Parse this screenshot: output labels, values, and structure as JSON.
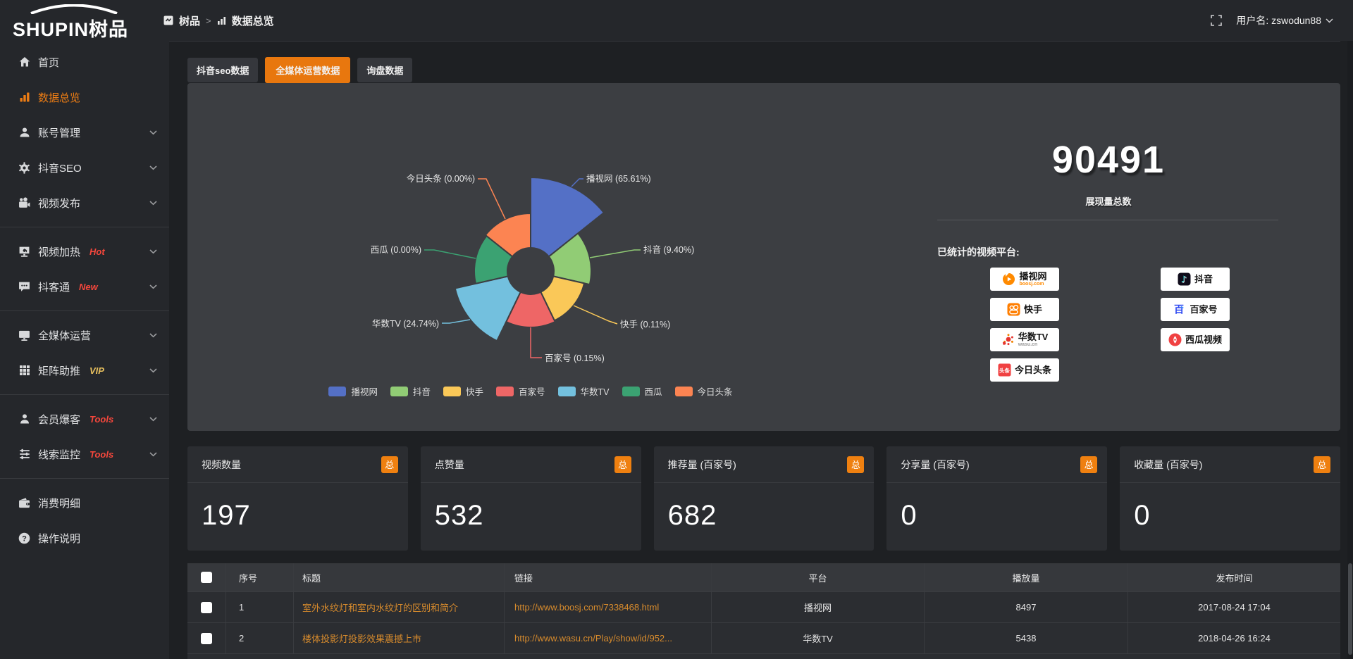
{
  "topbar": {
    "logo_text": "SHUPIN树品",
    "breadcrumb": {
      "root": "树品",
      "separator": ">",
      "current": "数据总览"
    },
    "username": "用户名: zswodun88"
  },
  "sidebar": {
    "items": [
      {
        "id": "home",
        "icon": "home-icon",
        "label": "首页",
        "active": false,
        "chevron": false,
        "group": 1
      },
      {
        "id": "data-overview",
        "icon": "bar-chart-icon",
        "label": "数据总览",
        "active": true,
        "chevron": false,
        "group": 1
      },
      {
        "id": "account",
        "icon": "user-icon",
        "label": "账号管理",
        "active": false,
        "chevron": true,
        "group": 1
      },
      {
        "id": "douyin-seo",
        "icon": "gear-icon",
        "label": "抖音SEO",
        "active": false,
        "chevron": true,
        "group": 1
      },
      {
        "id": "video-publish",
        "icon": "video-camera-icon",
        "label": "视频发布",
        "active": false,
        "chevron": true,
        "group": 1
      },
      {
        "id": "video-heat",
        "icon": "screen-icon",
        "label": "视频加热",
        "badge": "Hot",
        "badge_color": "#f5473c",
        "chevron": true,
        "group": 2
      },
      {
        "id": "doukertong",
        "icon": "chat-icon",
        "label": "抖客通",
        "badge": "New",
        "badge_color": "#f5473c",
        "chevron": true,
        "group": 2
      },
      {
        "id": "omnimedia",
        "icon": "monitor-icon",
        "label": "全媒体运营",
        "chevron": true,
        "group": 3
      },
      {
        "id": "matrix-boost",
        "icon": "grid-icon",
        "label": "矩阵助推",
        "badge": "VIP",
        "badge_color": "#e8c05e",
        "chevron": true,
        "group": 3
      },
      {
        "id": "member-baoke",
        "icon": "person-icon",
        "label": "会员爆客",
        "badge": "Tools",
        "badge_color": "#f5473c",
        "chevron": true,
        "group": 4
      },
      {
        "id": "clue-monitor",
        "icon": "sliders-icon",
        "label": "线索监控",
        "badge": "Tools",
        "badge_color": "#f5473c",
        "chevron": true,
        "group": 4
      },
      {
        "id": "consumption",
        "icon": "wallet-icon",
        "label": "消费明细",
        "chevron": false,
        "group": 5
      },
      {
        "id": "instructions",
        "icon": "question-icon",
        "label": "操作说明",
        "chevron": false,
        "group": 5
      }
    ]
  },
  "tabs": [
    {
      "id": "douyin-seo-data",
      "label": "抖音seo数据",
      "active": false
    },
    {
      "id": "omnimedia-data",
      "label": "全媒体运营数据",
      "active": true
    },
    {
      "id": "inquiry-data",
      "label": "询盘数据",
      "active": false
    }
  ],
  "chart_data": {
    "type": "pie",
    "variant": "nightingale-rose",
    "items": [
      {
        "name": "播视网",
        "percent": 65.61,
        "label": "播视网 (65.61%)",
        "color": "#5470c6"
      },
      {
        "name": "抖音",
        "percent": 9.4,
        "label": "抖音 (9.40%)",
        "color": "#91cc75"
      },
      {
        "name": "快手",
        "percent": 0.11,
        "label": "快手 (0.11%)",
        "color": "#fac858"
      },
      {
        "name": "百家号",
        "percent": 0.15,
        "label": "百家号 (0.15%)",
        "color": "#ee6666"
      },
      {
        "name": "华数TV",
        "percent": 24.74,
        "label": "华数TV (24.74%)",
        "color": "#73c0de"
      },
      {
        "name": "西瓜",
        "percent": 0.0,
        "label": "西瓜 (0.00%)",
        "color": "#3ba272"
      },
      {
        "name": "今日头条",
        "percent": 0.0,
        "label": "今日头条 (0.00%)",
        "color": "#fc8452"
      }
    ],
    "legend": [
      "播视网",
      "抖音",
      "快手",
      "百家号",
      "华数TV",
      "西瓜",
      "今日头条"
    ],
    "legend_position": "bottom"
  },
  "summary": {
    "total_value": "90491",
    "total_label": "展现量总数",
    "platforms_title": "已统计的视频平台:",
    "platform_columns": [
      [
        {
          "id": "boosj",
          "icon": "boosj-play-icon",
          "label": "播视网",
          "sub": "boosj.com",
          "sub_color": "#ff8a00"
        },
        {
          "id": "kuaishou",
          "icon": "kuaishou-icon",
          "label": "快手"
        },
        {
          "id": "wasu",
          "icon": "wasu-burst-icon",
          "label": "华数TV",
          "sub": "wasu.cn",
          "sub_color": "#9a9a9a"
        },
        {
          "id": "toutiao",
          "icon": "toutiao-icon",
          "label": "今日头条"
        }
      ],
      [
        {
          "id": "douyin",
          "icon": "douyin-note-icon",
          "label": "抖音"
        },
        {
          "id": "baijiahao",
          "icon": "baijiahao-icon",
          "label": "百家号"
        },
        {
          "id": "xigua",
          "icon": "xigua-icon",
          "label": "西瓜视频"
        }
      ]
    ]
  },
  "stat_cards": [
    {
      "title": "视频数量",
      "badge": "总",
      "value": "197"
    },
    {
      "title": "点赞量",
      "badge": "总",
      "value": "532"
    },
    {
      "title": "推荐量 (百家号)",
      "badge": "总",
      "value": "682"
    },
    {
      "title": "分享量 (百家号)",
      "badge": "总",
      "value": "0"
    },
    {
      "title": "收藏量 (百家号)",
      "badge": "总",
      "value": "0"
    }
  ],
  "table": {
    "headers": [
      "序号",
      "标题",
      "链接",
      "平台",
      "播放量",
      "发布时间"
    ],
    "rows": [
      {
        "index": "1",
        "title": "室外水纹灯和室内水纹灯的区别和简介",
        "link": "http://www.boosj.com/7338468.html",
        "platform": "播视网",
        "plays": "8497",
        "published": "2017-08-24 17:04"
      },
      {
        "index": "2",
        "title": "楼体投影灯投影效果震撼上市",
        "link": "http://www.wasu.cn/Play/show/id/952...",
        "platform": "华数TV",
        "plays": "5438",
        "published": "2018-04-26 16:24"
      }
    ]
  },
  "colors": {
    "accent": "#e8770e",
    "badge_accent": "#ef8010",
    "link": "#d78b2d",
    "hot": "#f5473c",
    "vip": "#e8c05e"
  }
}
